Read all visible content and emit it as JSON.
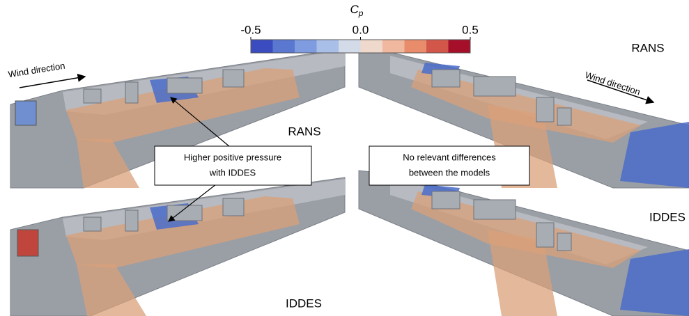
{
  "colorbar": {
    "title": "C",
    "subscript": "p",
    "range": [
      -0.5,
      0.5
    ],
    "ticks": [
      {
        "value": -0.5,
        "label": "-0.5"
      },
      {
        "value": 0,
        "label": "0.0"
      },
      {
        "value": 0.5,
        "label": "0.5"
      }
    ],
    "colors": [
      "#3b4cc0",
      "#5a78d0",
      "#7f9ce0",
      "#a9bfe8",
      "#d3dbe8",
      "#efd9cc",
      "#f0b89e",
      "#e88c6c",
      "#d2574a",
      "#a50f2a"
    ]
  },
  "panels": [
    {
      "label": "RANS",
      "wind": "Wind direction"
    },
    {
      "label": "RANS",
      "wind": "Wind direction"
    },
    {
      "label": "IDDES"
    },
    {
      "label": "IDDES"
    }
  ],
  "annotations": [
    {
      "lines": [
        "Higher positive pressure",
        "with IDDES"
      ]
    },
    {
      "lines": [
        "No relevant differences",
        "between the models"
      ]
    }
  ]
}
